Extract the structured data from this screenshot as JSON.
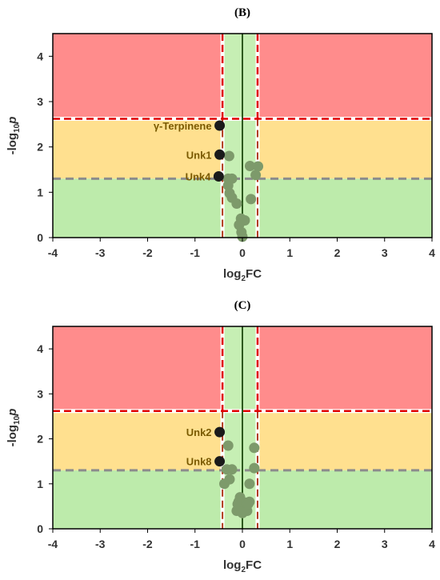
{
  "colors": {
    "red_zone": "#ff8c8c",
    "yellow_zone": "#ffe08f",
    "green_zone": "#bdebab",
    "green_band": "#c6efb4",
    "point_gray": "#7d9a6b",
    "point_black": "#1a1a1a",
    "red_dash": "#e00000",
    "gray_dash": "#8c8c8c",
    "center_line": "#2d5a1e",
    "annotation": "#7a5a00"
  },
  "chart_data": [
    {
      "panel": "(B)",
      "type": "scatter",
      "xlabel": "log2FC",
      "ylabel": "-log10p",
      "xlim": [
        -4,
        4
      ],
      "ylim": [
        0,
        4.5
      ],
      "xticks": [
        "-4",
        "-3",
        "-2",
        "-1",
        "0",
        "1",
        "2",
        "3",
        "4"
      ],
      "yticks": [
        "0",
        "1",
        "2",
        "3",
        "4"
      ],
      "grid": false,
      "thresholds": {
        "fc": [
          -0.42,
          0.32
        ],
        "p_upper": 2.62,
        "p_lower": 1.3
      },
      "highlight_points": [
        {
          "label": "γ-Terpinene",
          "x": -0.48,
          "y": 2.47
        },
        {
          "label": "Unk1",
          "x": -0.48,
          "y": 1.83
        },
        {
          "label": "Unk4",
          "x": -0.5,
          "y": 1.35
        }
      ],
      "points": [
        [
          -0.28,
          1.8
        ],
        [
          -0.3,
          1.3
        ],
        [
          -0.22,
          1.3
        ],
        [
          -0.3,
          1.15
        ],
        [
          -0.27,
          0.98
        ],
        [
          -0.22,
          0.88
        ],
        [
          -0.12,
          0.75
        ],
        [
          -0.03,
          0.42
        ],
        [
          0.05,
          0.38
        ],
        [
          -0.07,
          0.28
        ],
        [
          -0.02,
          0.12
        ],
        [
          0.0,
          0.02
        ],
        [
          0.18,
          0.85
        ],
        [
          0.16,
          1.58
        ],
        [
          0.33,
          1.57
        ],
        [
          0.28,
          1.38
        ]
      ]
    },
    {
      "panel": "(C)",
      "type": "scatter",
      "xlabel": "log2FC",
      "ylabel": "-log10p",
      "xlim": [
        -4,
        4
      ],
      "ylim": [
        0,
        4.5
      ],
      "xticks": [
        "-4",
        "-3",
        "-2",
        "-1",
        "0",
        "1",
        "2",
        "3",
        "4"
      ],
      "yticks": [
        "0",
        "1",
        "2",
        "3",
        "4"
      ],
      "grid": false,
      "thresholds": {
        "fc": [
          -0.42,
          0.32
        ],
        "p_upper": 2.62,
        "p_lower": 1.3
      },
      "highlight_points": [
        {
          "label": "Unk2",
          "x": -0.48,
          "y": 2.15
        },
        {
          "label": "Unk8",
          "x": -0.48,
          "y": 1.5
        }
      ],
      "points": [
        [
          -0.3,
          1.85
        ],
        [
          -0.33,
          1.32
        ],
        [
          -0.22,
          1.32
        ],
        [
          -0.38,
          1.0
        ],
        [
          -0.27,
          1.1
        ],
        [
          0.25,
          1.8
        ],
        [
          0.25,
          1.35
        ],
        [
          0.15,
          1.0
        ],
        [
          0.15,
          0.6
        ],
        [
          -0.05,
          0.7
        ],
        [
          -0.1,
          0.55
        ],
        [
          -0.05,
          0.45
        ],
        [
          0.0,
          0.35
        ],
        [
          0.05,
          0.5
        ],
        [
          0.1,
          0.4
        ],
        [
          -0.08,
          0.6
        ],
        [
          0.0,
          0.6
        ],
        [
          0.08,
          0.58
        ],
        [
          -0.12,
          0.4
        ],
        [
          0.12,
          0.55
        ]
      ]
    }
  ]
}
